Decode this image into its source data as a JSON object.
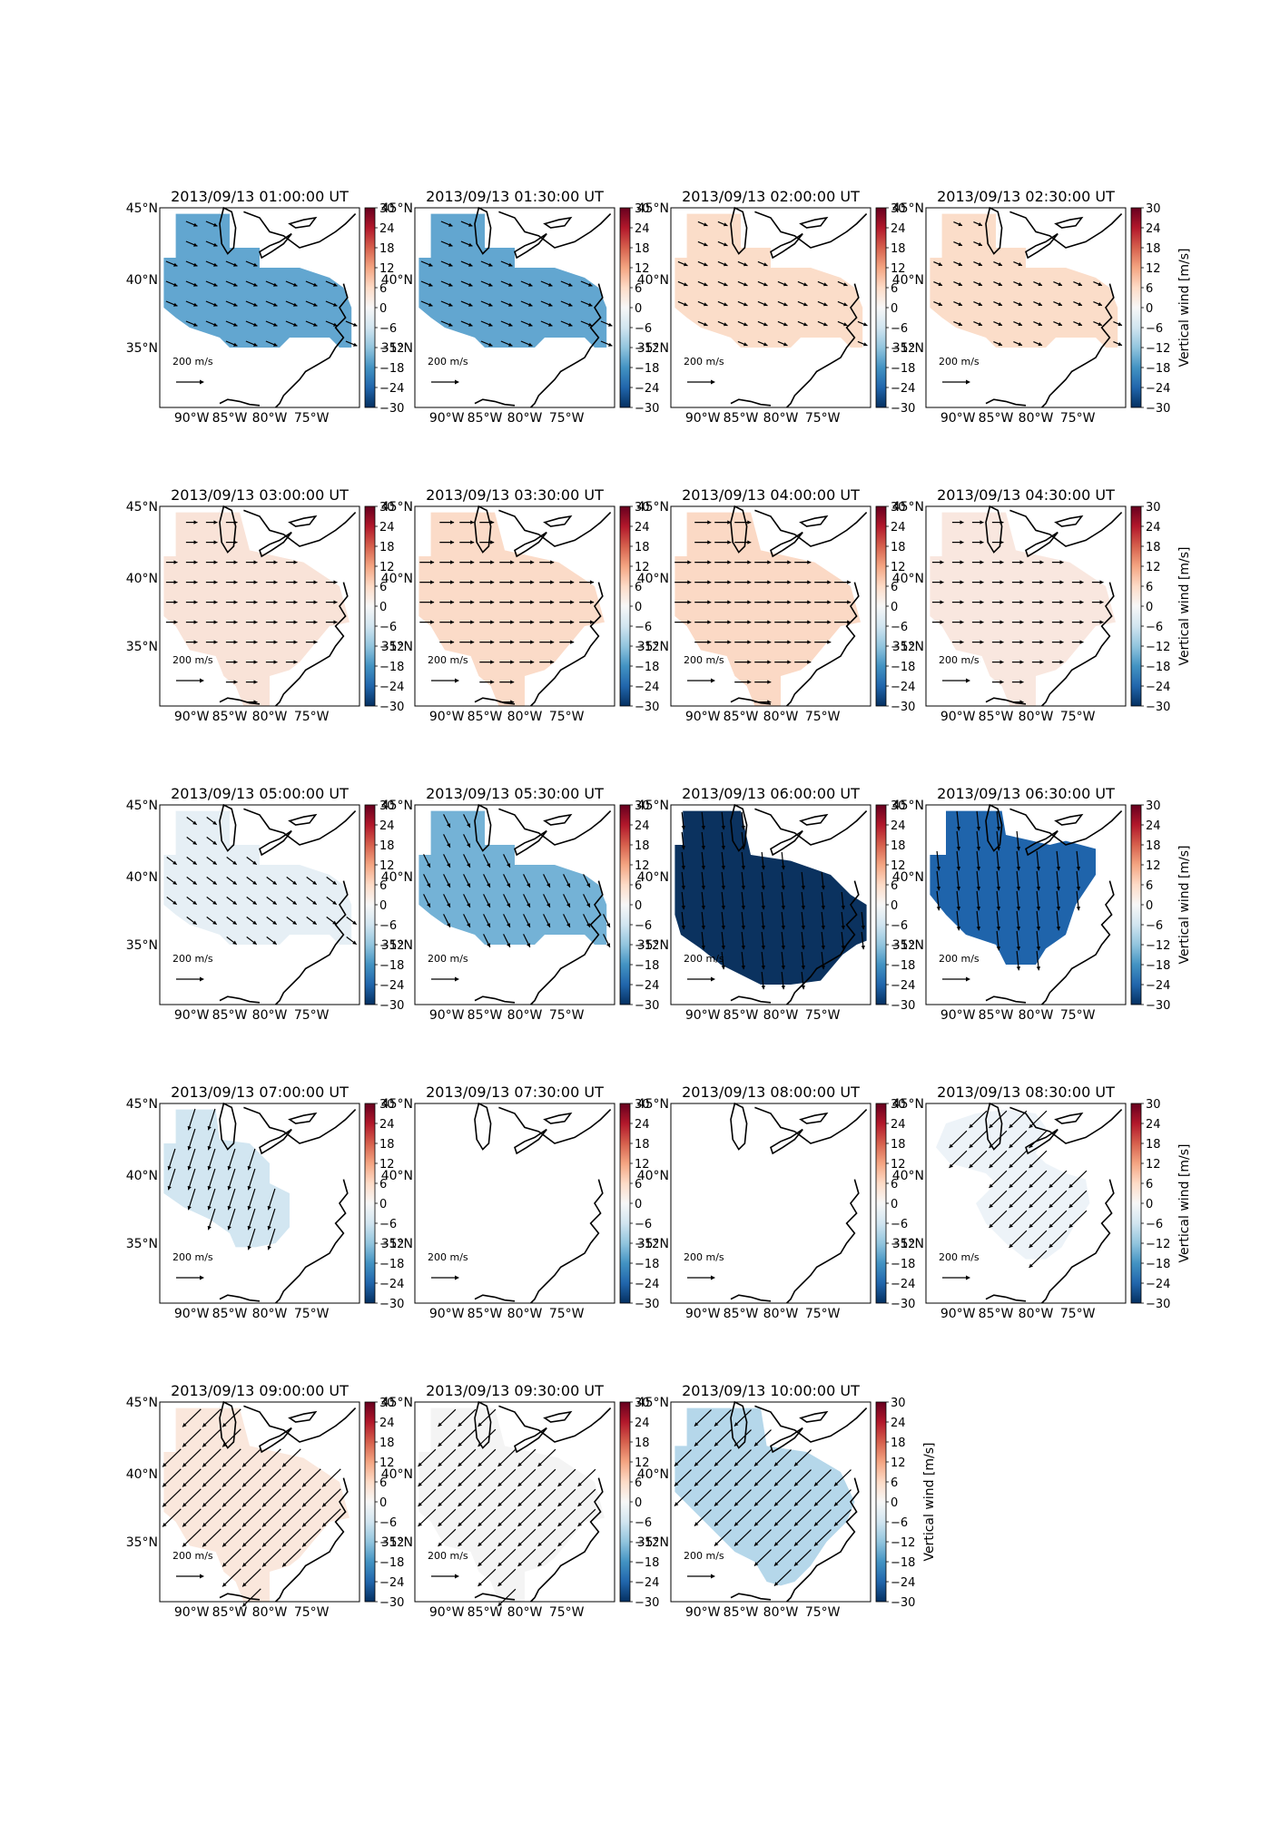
{
  "figure": {
    "colorbar": {
      "label": "Vertical wind [m/s]",
      "ticks": [
        "30",
        "24",
        "18",
        "12",
        "6",
        "0",
        "−6",
        "−12",
        "−18",
        "−24",
        "−30"
      ],
      "colors": [
        "#67001f",
        "#b2182b",
        "#d6604d",
        "#f4a582",
        "#fddbc7",
        "#f7f7f7",
        "#d1e5f0",
        "#92c5de",
        "#4393c3",
        "#2166ac",
        "#053061"
      ]
    },
    "map_axes": {
      "lon_ticks": [
        "90°W",
        "85°W",
        "80°W",
        "75°W"
      ],
      "lat_ticks": [
        "45°N",
        "40°N",
        "35°N"
      ]
    },
    "reference_arrow_label": "200 m/s",
    "panels": [
      {
        "title": "2013/09/13 01:00:00 UT",
        "fill": "#62a6d0",
        "shape": "A",
        "wind": "ese",
        "arrow_len": 0.35,
        "colorbar_label": false
      },
      {
        "title": "2013/09/13 01:30:00 UT",
        "fill": "#62a6d0",
        "shape": "A",
        "wind": "ese",
        "arrow_len": 0.35,
        "colorbar_label": false
      },
      {
        "title": "2013/09/13 02:00:00 UT",
        "fill": "#fbddc9",
        "shape": "A",
        "wind": "ese",
        "arrow_len": 0.25,
        "colorbar_label": false
      },
      {
        "title": "2013/09/13 02:30:00 UT",
        "fill": "#fbddc9",
        "shape": "A",
        "wind": "ese",
        "arrow_len": 0.2,
        "colorbar_label": true
      },
      {
        "title": "2013/09/13 03:00:00 UT",
        "fill": "#f9e3d8",
        "shape": "B",
        "wind": "e",
        "arrow_len": 0.3,
        "colorbar_label": false
      },
      {
        "title": "2013/09/13 03:30:00 UT",
        "fill": "#fbdbc8",
        "shape": "B",
        "wind": "e",
        "arrow_len": 0.45,
        "colorbar_label": false
      },
      {
        "title": "2013/09/13 04:00:00 UT",
        "fill": "#fbd9c5",
        "shape": "B",
        "wind": "e",
        "arrow_len": 0.55,
        "colorbar_label": false
      },
      {
        "title": "2013/09/13 04:30:00 UT",
        "fill": "#f9e7df",
        "shape": "B",
        "wind": "e",
        "arrow_len": 0.3,
        "colorbar_label": true
      },
      {
        "title": "2013/09/13 05:00:00 UT",
        "fill": "#e6eff5",
        "shape": "A",
        "wind": "se",
        "arrow_len": 0.35,
        "colorbar_label": false
      },
      {
        "title": "2013/09/13 05:30:00 UT",
        "fill": "#74b2d6",
        "shape": "A",
        "wind": "sse",
        "arrow_len": 0.45,
        "colorbar_label": false
      },
      {
        "title": "2013/09/13 06:00:00 UT",
        "fill": "#0b325f",
        "shape": "C",
        "wind": "s",
        "arrow_len": 0.6,
        "colorbar_label": false
      },
      {
        "title": "2013/09/13 06:30:00 UT",
        "fill": "#1f64ab",
        "shape": "D",
        "wind": "s",
        "arrow_len": 0.7,
        "colorbar_label": true
      },
      {
        "title": "2013/09/13 07:00:00 UT",
        "fill": "#d2e6f1",
        "shape": "E",
        "wind": "ssw",
        "arrow_len": 0.85,
        "colorbar_label": false
      },
      {
        "title": "2013/09/13 07:30:00 UT",
        "fill": "",
        "shape": "none",
        "wind": "none",
        "arrow_len": 0,
        "colorbar_label": false
      },
      {
        "title": "2013/09/13 08:00:00 UT",
        "fill": "",
        "shape": "none",
        "wind": "none",
        "arrow_len": 0,
        "colorbar_label": false
      },
      {
        "title": "2013/09/13 08:30:00 UT",
        "fill": "#edf3f8",
        "shape": "F",
        "wind": "sw",
        "arrow_len": 0.95,
        "colorbar_label": true
      },
      {
        "title": "2013/09/13 09:00:00 UT",
        "fill": "#fae7dc",
        "shape": "B",
        "wind": "sw",
        "arrow_len": 1.0,
        "colorbar_label": false
      },
      {
        "title": "2013/09/13 09:30:00 UT",
        "fill": "#f4f4f4",
        "shape": "B",
        "wind": "sw",
        "arrow_len": 0.95,
        "colorbar_label": false
      },
      {
        "title": "2013/09/13 10:00:00 UT",
        "fill": "#b5d7ea",
        "shape": "G",
        "wind": "sw",
        "arrow_len": 0.9,
        "colorbar_label": true
      }
    ]
  }
}
